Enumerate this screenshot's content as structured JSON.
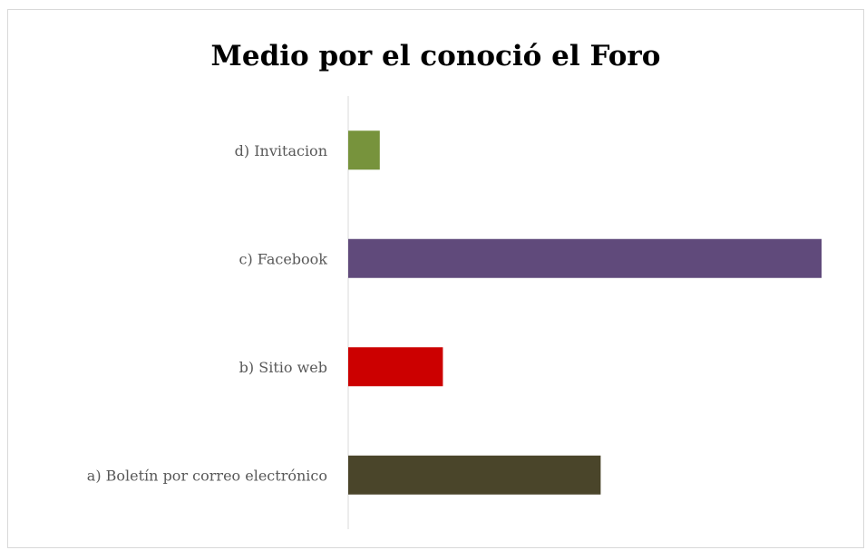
{
  "chart_data": {
    "type": "bar",
    "orientation": "horizontal",
    "title": "Medio por el conoció el Foro",
    "xlabel": "",
    "ylabel": "",
    "categories": [
      "a) Boletín por correo electrónico",
      "b) Sitio web",
      "c) Facebook",
      "d) Invitacion"
    ],
    "values": [
      8,
      3,
      15,
      1
    ],
    "colors": [
      "#4a452a",
      "#cc0000",
      "#604a7b",
      "#77933c"
    ],
    "xlim": [
      0,
      15
    ],
    "grid": false,
    "legend": "none"
  }
}
